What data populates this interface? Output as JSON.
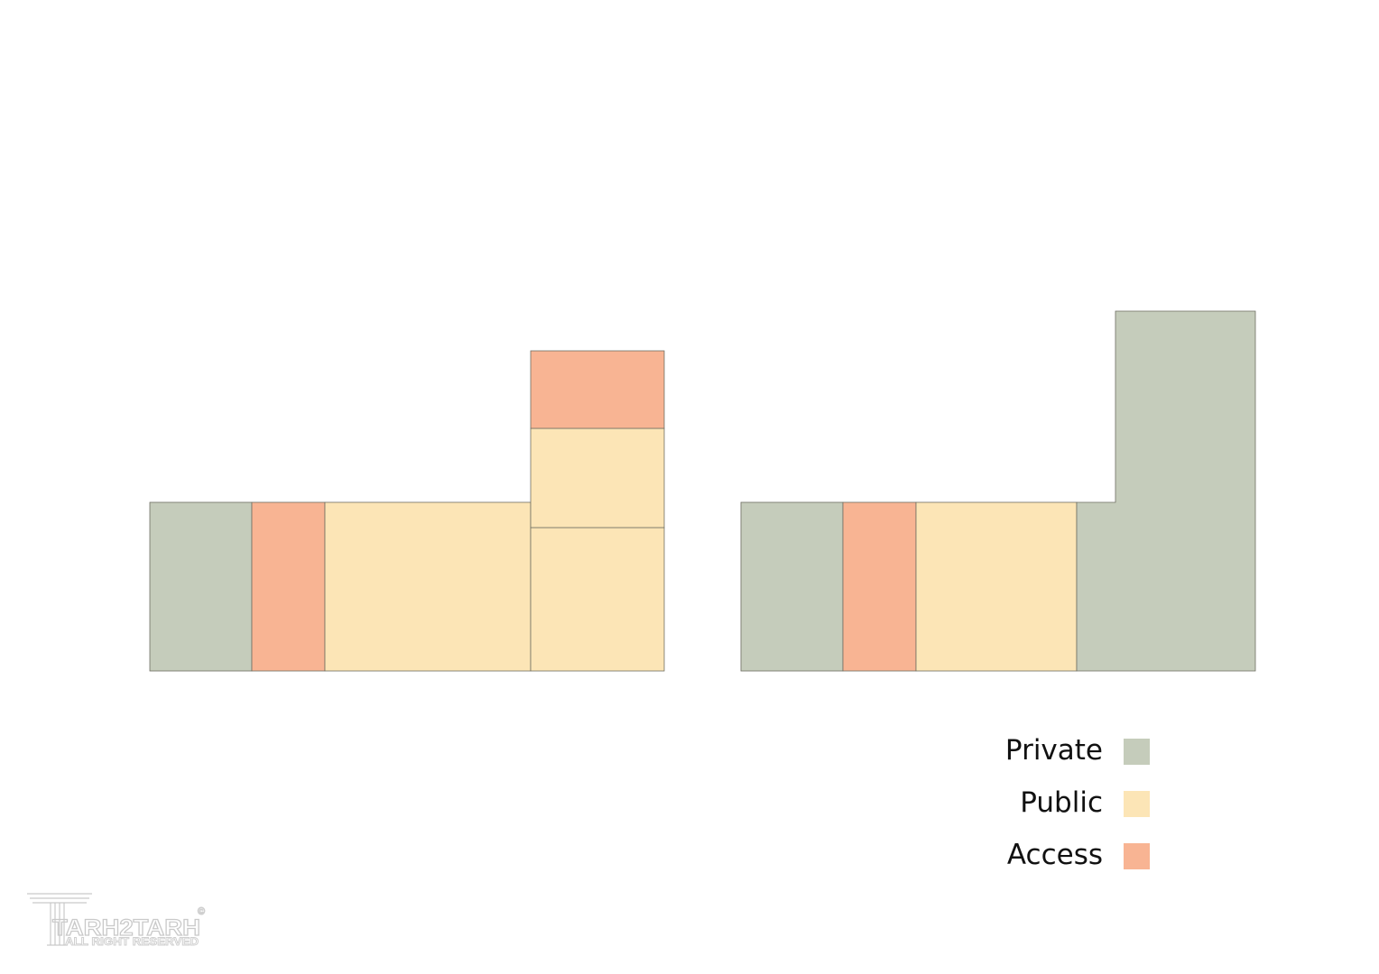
{
  "colors": {
    "private": "#c5ccbb",
    "public": "#fce5b6",
    "access": "#f8b493"
  },
  "legend": [
    {
      "key": "private",
      "label": "Private",
      "color": "#c5ccbb"
    },
    {
      "key": "public",
      "label": "Public",
      "color": "#fce5b6"
    },
    {
      "key": "access",
      "label": "Access",
      "color": "#f8b493"
    }
  ],
  "plans": [
    {
      "name": "left-plan",
      "zones": [
        "private",
        "access",
        "public",
        "public",
        "public",
        "access"
      ]
    },
    {
      "name": "right-plan",
      "zones": [
        "private",
        "access",
        "public",
        "private"
      ]
    }
  ],
  "watermark": {
    "brand": "TARH2TARH",
    "tagline": "ALL RIGHT RESERVED",
    "copyright": "©"
  }
}
